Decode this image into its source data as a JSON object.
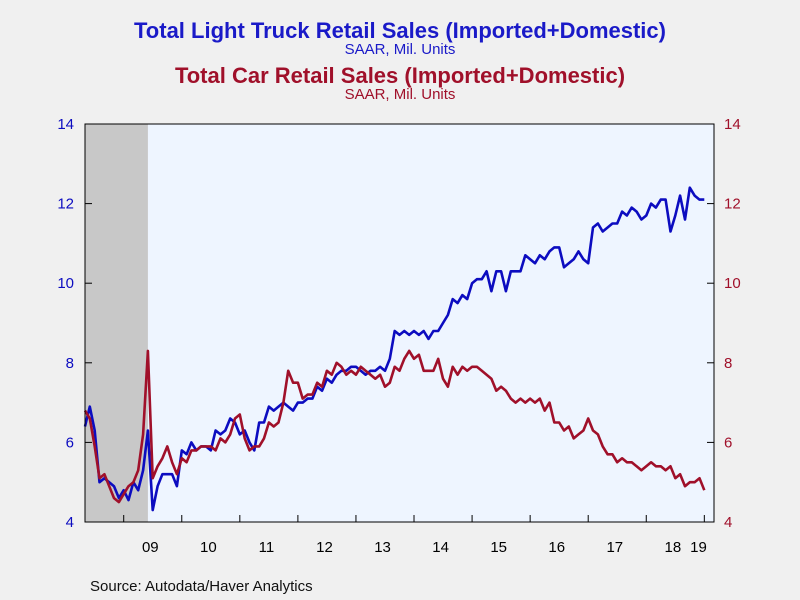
{
  "titles": {
    "series1_title": "Total Light Truck Retail Sales (Imported+Domestic)",
    "series1_subtitle": "SAAR, Mil. Units",
    "series2_title": "Total Car Retail Sales (Imported+Domestic)",
    "series2_subtitle": "SAAR, Mil. Units"
  },
  "source": "Source:  Autodata/Haver Analytics",
  "colors": {
    "truck": "#0c0cc0",
    "car": "#a0102a",
    "plot_bg": "#eef5ff",
    "recession": "#c8c8c8",
    "frame": "#000000"
  },
  "chart_data": {
    "type": "line",
    "xlabel": "",
    "ylabel": "",
    "ylim": [
      4,
      14
    ],
    "y_ticks": [
      "4",
      "6",
      "8",
      "10",
      "12",
      "14"
    ],
    "y_ticks_right": [
      "4",
      "6",
      "8",
      "10",
      "12",
      "14"
    ],
    "x_ticks": [
      "09",
      "10",
      "11",
      "12",
      "13",
      "14",
      "15",
      "16",
      "17",
      "18",
      "19"
    ],
    "x_range": [
      "2008-05",
      "2019-03"
    ],
    "recession_shading": {
      "start": "2008-05",
      "end": "2009-06"
    },
    "grid": false,
    "series": [
      {
        "key": "truck",
        "color": "#0c0cc0",
        "points": [
          [
            "2008-05",
            6.4
          ],
          [
            "2008-06",
            6.9
          ],
          [
            "2008-07",
            6.3
          ],
          [
            "2008-08",
            5.0
          ],
          [
            "2008-09",
            5.1
          ],
          [
            "2008-10",
            5.0
          ],
          [
            "2008-11",
            4.9
          ],
          [
            "2008-12",
            4.6
          ],
          [
            "2009-01",
            4.8
          ],
          [
            "2009-02",
            4.55
          ],
          [
            "2009-03",
            5.0
          ],
          [
            "2009-04",
            4.8
          ],
          [
            "2009-05",
            5.3
          ],
          [
            "2009-06",
            6.3
          ],
          [
            "2009-07",
            4.3
          ],
          [
            "2009-08",
            4.9
          ],
          [
            "2009-09",
            5.2
          ],
          [
            "2009-10",
            5.2
          ],
          [
            "2009-11",
            5.2
          ],
          [
            "2009-12",
            4.9
          ],
          [
            "2010-01",
            5.8
          ],
          [
            "2010-02",
            5.7
          ],
          [
            "2010-03",
            6.0
          ],
          [
            "2010-04",
            5.8
          ],
          [
            "2010-05",
            5.9
          ],
          [
            "2010-06",
            5.9
          ],
          [
            "2010-07",
            5.8
          ],
          [
            "2010-08",
            6.3
          ],
          [
            "2010-09",
            6.2
          ],
          [
            "2010-10",
            6.3
          ],
          [
            "2010-11",
            6.6
          ],
          [
            "2010-12",
            6.5
          ],
          [
            "2011-01",
            6.2
          ],
          [
            "2011-02",
            6.3
          ],
          [
            "2011-03",
            6.0
          ],
          [
            "2011-04",
            5.8
          ],
          [
            "2011-05",
            6.5
          ],
          [
            "2011-06",
            6.5
          ],
          [
            "2011-07",
            6.9
          ],
          [
            "2011-08",
            6.8
          ],
          [
            "2011-09",
            6.9
          ],
          [
            "2011-10",
            7.0
          ],
          [
            "2011-11",
            6.9
          ],
          [
            "2011-12",
            6.8
          ],
          [
            "2012-01",
            7.0
          ],
          [
            "2012-02",
            7.0
          ],
          [
            "2012-03",
            7.1
          ],
          [
            "2012-04",
            7.1
          ],
          [
            "2012-05",
            7.4
          ],
          [
            "2012-06",
            7.3
          ],
          [
            "2012-07",
            7.6
          ],
          [
            "2012-08",
            7.5
          ],
          [
            "2012-09",
            7.7
          ],
          [
            "2012-10",
            7.8
          ],
          [
            "2012-11",
            7.8
          ],
          [
            "2012-12",
            7.9
          ],
          [
            "2013-01",
            7.9
          ],
          [
            "2013-02",
            7.8
          ],
          [
            "2013-03",
            7.7
          ],
          [
            "2013-04",
            7.8
          ],
          [
            "2013-05",
            7.8
          ],
          [
            "2013-06",
            7.9
          ],
          [
            "2013-07",
            7.8
          ],
          [
            "2013-08",
            8.1
          ],
          [
            "2013-09",
            8.8
          ],
          [
            "2013-10",
            8.7
          ],
          [
            "2013-11",
            8.8
          ],
          [
            "2013-12",
            8.7
          ],
          [
            "2014-01",
            8.8
          ],
          [
            "2014-02",
            8.7
          ],
          [
            "2014-03",
            8.8
          ],
          [
            "2014-04",
            8.6
          ],
          [
            "2014-05",
            8.8
          ],
          [
            "2014-06",
            8.8
          ],
          [
            "2014-07",
            9.0
          ],
          [
            "2014-08",
            9.2
          ],
          [
            "2014-09",
            9.6
          ],
          [
            "2014-10",
            9.5
          ],
          [
            "2014-11",
            9.7
          ],
          [
            "2014-12",
            9.6
          ],
          [
            "2015-01",
            10.0
          ],
          [
            "2015-02",
            10.1
          ],
          [
            "2015-03",
            10.1
          ],
          [
            "2015-04",
            10.3
          ],
          [
            "2015-05",
            9.8
          ],
          [
            "2015-06",
            10.3
          ],
          [
            "2015-07",
            10.3
          ],
          [
            "2015-08",
            9.8
          ],
          [
            "2015-09",
            10.3
          ],
          [
            "2015-10",
            10.3
          ],
          [
            "2015-11",
            10.3
          ],
          [
            "2015-12",
            10.7
          ],
          [
            "2016-01",
            10.6
          ],
          [
            "2016-02",
            10.5
          ],
          [
            "2016-03",
            10.7
          ],
          [
            "2016-04",
            10.6
          ],
          [
            "2016-05",
            10.8
          ],
          [
            "2016-06",
            10.9
          ],
          [
            "2016-07",
            10.9
          ],
          [
            "2016-08",
            10.4
          ],
          [
            "2016-09",
            10.5
          ],
          [
            "2016-10",
            10.6
          ],
          [
            "2016-11",
            10.8
          ],
          [
            "2016-12",
            10.6
          ],
          [
            "2017-01",
            10.5
          ],
          [
            "2017-02",
            11.4
          ],
          [
            "2017-03",
            11.5
          ],
          [
            "2017-04",
            11.3
          ],
          [
            "2017-05",
            11.4
          ],
          [
            "2017-06",
            11.5
          ],
          [
            "2017-07",
            11.5
          ],
          [
            "2017-08",
            11.8
          ],
          [
            "2017-09",
            11.7
          ],
          [
            "2017-10",
            11.9
          ],
          [
            "2017-11",
            11.8
          ],
          [
            "2017-12",
            11.6
          ],
          [
            "2018-01",
            11.7
          ],
          [
            "2018-02",
            12.0
          ],
          [
            "2018-03",
            11.9
          ],
          [
            "2018-04",
            12.1
          ],
          [
            "2018-05",
            12.1
          ],
          [
            "2018-06",
            11.3
          ],
          [
            "2018-07",
            11.7
          ],
          [
            "2018-08",
            12.2
          ],
          [
            "2018-09",
            11.6
          ],
          [
            "2018-10",
            12.4
          ],
          [
            "2018-11",
            12.2
          ],
          [
            "2018-12",
            12.1
          ],
          [
            "2019-01",
            12.1
          ]
        ]
      },
      {
        "key": "car",
        "color": "#a0102a",
        "points": [
          [
            "2008-05",
            6.8
          ],
          [
            "2008-06",
            6.6
          ],
          [
            "2008-07",
            5.9
          ],
          [
            "2008-08",
            5.1
          ],
          [
            "2008-09",
            5.2
          ],
          [
            "2008-10",
            4.9
          ],
          [
            "2008-11",
            4.6
          ],
          [
            "2008-12",
            4.5
          ],
          [
            "2009-01",
            4.7
          ],
          [
            "2009-02",
            4.9
          ],
          [
            "2009-03",
            5.0
          ],
          [
            "2009-04",
            5.3
          ],
          [
            "2009-05",
            6.2
          ],
          [
            "2009-06",
            8.3
          ],
          [
            "2009-07",
            5.1
          ],
          [
            "2009-08",
            5.4
          ],
          [
            "2009-09",
            5.6
          ],
          [
            "2009-10",
            5.9
          ],
          [
            "2009-11",
            5.5
          ],
          [
            "2009-12",
            5.2
          ],
          [
            "2010-01",
            5.6
          ],
          [
            "2010-02",
            5.5
          ],
          [
            "2010-03",
            5.8
          ],
          [
            "2010-04",
            5.8
          ],
          [
            "2010-05",
            5.9
          ],
          [
            "2010-06",
            5.9
          ],
          [
            "2010-07",
            5.9
          ],
          [
            "2010-08",
            5.8
          ],
          [
            "2010-09",
            6.1
          ],
          [
            "2010-10",
            6.0
          ],
          [
            "2010-11",
            6.2
          ],
          [
            "2010-12",
            6.6
          ],
          [
            "2011-01",
            6.7
          ],
          [
            "2011-02",
            6.1
          ],
          [
            "2011-03",
            5.8
          ],
          [
            "2011-04",
            5.9
          ],
          [
            "2011-05",
            5.9
          ],
          [
            "2011-06",
            6.1
          ],
          [
            "2011-07",
            6.5
          ],
          [
            "2011-08",
            6.4
          ],
          [
            "2011-09",
            6.5
          ],
          [
            "2011-10",
            7.0
          ],
          [
            "2011-11",
            7.8
          ],
          [
            "2011-12",
            7.5
          ],
          [
            "2012-01",
            7.5
          ],
          [
            "2012-02",
            7.1
          ],
          [
            "2012-03",
            7.2
          ],
          [
            "2012-04",
            7.2
          ],
          [
            "2012-05",
            7.5
          ],
          [
            "2012-06",
            7.4
          ],
          [
            "2012-07",
            7.8
          ],
          [
            "2012-08",
            7.7
          ],
          [
            "2012-09",
            8.0
          ],
          [
            "2012-10",
            7.9
          ],
          [
            "2012-11",
            7.7
          ],
          [
            "2012-12",
            7.8
          ],
          [
            "2013-01",
            7.7
          ],
          [
            "2013-02",
            7.9
          ],
          [
            "2013-03",
            7.8
          ],
          [
            "2013-04",
            7.7
          ],
          [
            "2013-05",
            7.6
          ],
          [
            "2013-06",
            7.7
          ],
          [
            "2013-07",
            7.4
          ],
          [
            "2013-08",
            7.5
          ],
          [
            "2013-09",
            7.9
          ],
          [
            "2013-10",
            7.8
          ],
          [
            "2013-11",
            8.1
          ],
          [
            "2013-12",
            8.3
          ],
          [
            "2014-01",
            8.1
          ],
          [
            "2014-02",
            8.2
          ],
          [
            "2014-03",
            7.8
          ],
          [
            "2014-04",
            7.8
          ],
          [
            "2014-05",
            7.8
          ],
          [
            "2014-06",
            8.1
          ],
          [
            "2014-07",
            7.6
          ],
          [
            "2014-08",
            7.4
          ],
          [
            "2014-09",
            7.9
          ],
          [
            "2014-10",
            7.7
          ],
          [
            "2014-11",
            7.9
          ],
          [
            "2014-12",
            7.8
          ],
          [
            "2015-01",
            7.9
          ],
          [
            "2015-02",
            7.9
          ],
          [
            "2015-03",
            7.8
          ],
          [
            "2015-04",
            7.7
          ],
          [
            "2015-05",
            7.6
          ],
          [
            "2015-06",
            7.3
          ],
          [
            "2015-07",
            7.4
          ],
          [
            "2015-08",
            7.3
          ],
          [
            "2015-09",
            7.1
          ],
          [
            "2015-10",
            7.0
          ],
          [
            "2015-11",
            7.1
          ],
          [
            "2015-12",
            7.0
          ],
          [
            "2016-01",
            7.1
          ],
          [
            "2016-02",
            7.0
          ],
          [
            "2016-03",
            7.1
          ],
          [
            "2016-04",
            6.8
          ],
          [
            "2016-05",
            7.0
          ],
          [
            "2016-06",
            6.5
          ],
          [
            "2016-07",
            6.5
          ],
          [
            "2016-08",
            6.3
          ],
          [
            "2016-09",
            6.4
          ],
          [
            "2016-10",
            6.1
          ],
          [
            "2016-11",
            6.2
          ],
          [
            "2016-12",
            6.3
          ],
          [
            "2017-01",
            6.6
          ],
          [
            "2017-02",
            6.3
          ],
          [
            "2017-03",
            6.2
          ],
          [
            "2017-04",
            5.9
          ],
          [
            "2017-05",
            5.7
          ],
          [
            "2017-06",
            5.7
          ],
          [
            "2017-07",
            5.5
          ],
          [
            "2017-08",
            5.6
          ],
          [
            "2017-09",
            5.5
          ],
          [
            "2017-10",
            5.5
          ],
          [
            "2017-11",
            5.4
          ],
          [
            "2017-12",
            5.3
          ],
          [
            "2018-01",
            5.4
          ],
          [
            "2018-02",
            5.5
          ],
          [
            "2018-03",
            5.4
          ],
          [
            "2018-04",
            5.4
          ],
          [
            "2018-05",
            5.3
          ],
          [
            "2018-06",
            5.4
          ],
          [
            "2018-07",
            5.1
          ],
          [
            "2018-08",
            5.2
          ],
          [
            "2018-09",
            4.9
          ],
          [
            "2018-10",
            5.0
          ],
          [
            "2018-11",
            5.0
          ],
          [
            "2018-12",
            5.1
          ],
          [
            "2019-01",
            4.8
          ]
        ]
      }
    ]
  }
}
